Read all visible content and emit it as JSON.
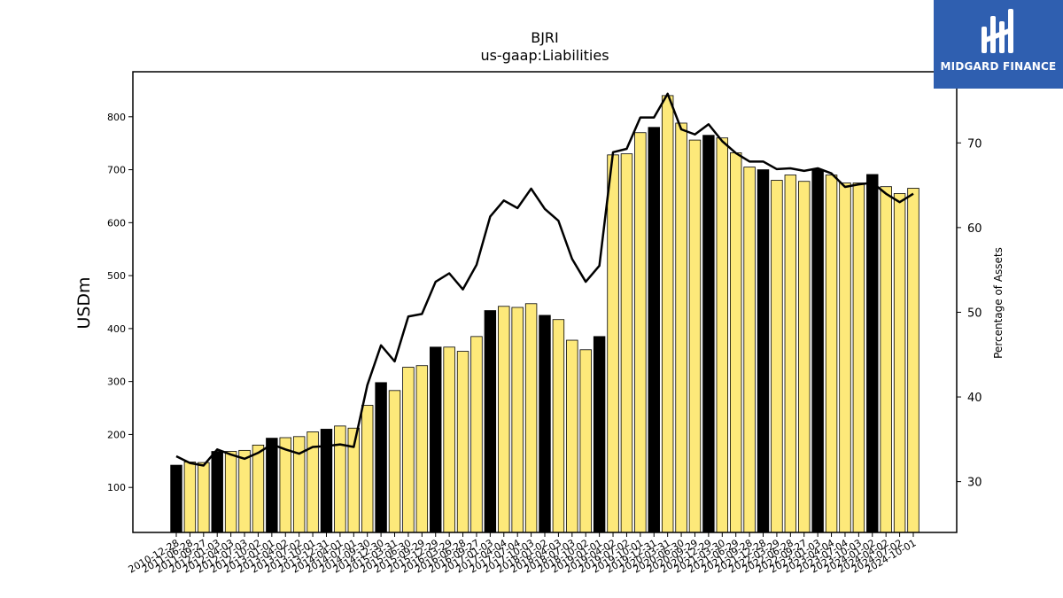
{
  "chart_data": {
    "type": "bar",
    "title": "BJRI",
    "subtitle": "us-gaap:Liabilities",
    "ylabel": "USDm",
    "y2label": "Percentage of Assets",
    "ylim": [
      15,
      885
    ],
    "y2lim": [
      24.0,
      78.4
    ],
    "yticks": [
      100,
      200,
      300,
      400,
      500,
      600,
      700,
      800
    ],
    "y2ticks": [
      30,
      40,
      50,
      60,
      70
    ],
    "grid": false,
    "legend": "none",
    "colors": {
      "annual": "#000000",
      "quarterly": "#fde97a",
      "line": "#000000"
    },
    "categories": [
      "2010-12-28",
      "2011-06-28",
      "2011-09-27",
      "2012-01-03",
      "2012-04-03",
      "2012-07-03",
      "2012-10-02",
      "2013-01-01",
      "2013-04-02",
      "2013-07-02",
      "2013-10-01",
      "2013-12-31",
      "2014-04-01",
      "2014-07-01",
      "2014-09-30",
      "2014-12-30",
      "2015-03-31",
      "2015-06-30",
      "2015-09-29",
      "2015-12-29",
      "2016-03-29",
      "2016-06-28",
      "2016-09-27",
      "2017-01-03",
      "2017-04-04",
      "2017-07-04",
      "2017-10-03",
      "2018-01-02",
      "2018-04-03",
      "2018-07-03",
      "2018-10-02",
      "2019-01-01",
      "2019-04-02",
      "2019-07-02",
      "2019-10-01",
      "2019-12-31",
      "2020-03-31",
      "2020-06-30",
      "2020-09-29",
      "2020-12-29",
      "2021-03-30",
      "2021-06-29",
      "2021-09-28",
      "2021-12-28",
      "2022-03-29",
      "2022-06-28",
      "2022-09-27",
      "2023-01-03",
      "2023-04-04",
      "2023-07-04",
      "2023-10-03",
      "2024-01-02",
      "2024-04-02",
      "2024-07-02",
      "2024-10-01"
    ],
    "values": [
      142,
      148,
      147,
      168,
      168,
      170,
      180,
      193,
      194,
      196,
      205,
      210,
      216,
      212,
      255,
      298,
      283,
      327,
      330,
      365,
      365,
      357,
      385,
      434,
      442,
      440,
      447,
      425,
      417,
      378,
      360,
      385,
      728,
      730,
      770,
      780,
      840,
      788,
      756,
      765,
      760,
      732,
      705,
      700,
      680,
      690,
      678,
      700,
      690,
      675,
      675,
      691,
      668,
      655,
      665
    ],
    "annual": [
      true,
      false,
      false,
      true,
      false,
      false,
      false,
      true,
      false,
      false,
      false,
      true,
      false,
      false,
      false,
      true,
      false,
      false,
      false,
      true,
      false,
      false,
      false,
      true,
      false,
      false,
      false,
      true,
      false,
      false,
      false,
      true,
      false,
      false,
      false,
      true,
      false,
      false,
      false,
      true,
      false,
      false,
      false,
      true,
      false,
      false,
      false,
      true,
      false,
      false,
      false,
      true,
      false,
      false,
      false
    ],
    "percent": [
      33.0,
      32.2,
      31.9,
      33.8,
      33.2,
      32.7,
      33.4,
      34.4,
      33.8,
      33.3,
      34.1,
      34.2,
      34.4,
      34.1,
      41.4,
      46.1,
      44.2,
      49.5,
      49.8,
      53.6,
      54.6,
      52.7,
      55.6,
      61.3,
      63.2,
      62.3,
      64.6,
      62.2,
      60.8,
      56.3,
      53.6,
      55.5,
      68.9,
      69.3,
      73.0,
      73.0,
      75.8,
      71.6,
      71.0,
      72.2,
      70.2,
      68.8,
      67.8,
      67.8,
      66.9,
      67.0,
      66.7,
      67.0,
      66.4,
      64.8,
      65.1,
      65.3,
      64.0,
      63.0,
      64.0
    ]
  },
  "branding": {
    "logo_text": "MIDGARD FINANCE",
    "logo_icon": "midgard-rune-icon"
  }
}
